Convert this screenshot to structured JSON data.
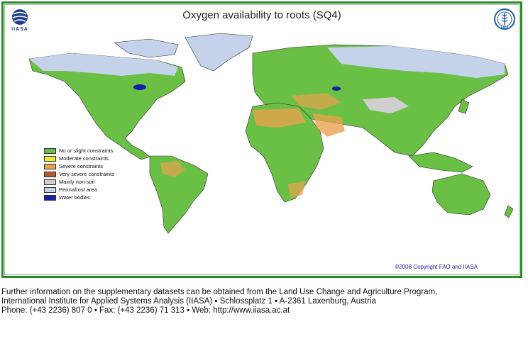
{
  "map": {
    "title": "Oxygen availability to roots (SQ4)",
    "iiasa_logo_text": "IIASA",
    "fao_logo_text": "FAO",
    "copyright": "©2008 Copyright FAO and IIASA",
    "legend": [
      {
        "label": "No or slight constraints",
        "color": "#6abf45"
      },
      {
        "label": "Moderate constraints",
        "color": "#e8ee2a"
      },
      {
        "label": "Severe constraints",
        "color": "#e8a24e"
      },
      {
        "label": "Very severe constraints",
        "color": "#b5582a"
      },
      {
        "label": "Mainly non-soil",
        "color": "#cfcfcf"
      },
      {
        "label": "Permafrost area",
        "color": "#c5d3ea"
      },
      {
        "label": "Water bodies",
        "color": "#1420a8"
      }
    ]
  },
  "footer": {
    "line1": "Further information on the supplementary datasets can be obtained from the Land Use Change and Agriculture Program,",
    "line2": "International Institute for Applied Systems Analysis (IIASA) ▪ Schlossplatz 1 ▪ A-2361 Laxenburg, Austria",
    "line3": "Phone: (+43 2236) 807 0 ▪ Fax: (+43 2236) 71 313 ▪ Web: http://www.iiasa.ac.at"
  }
}
